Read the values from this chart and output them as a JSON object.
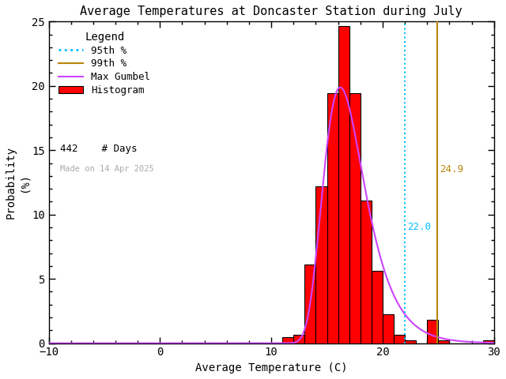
{
  "title": "Average Temperatures at Doncaster Station during July",
  "xlabel": "Average Temperature (C)",
  "ylabel": "Probability\n(%)",
  "xlim": [
    -10,
    30
  ],
  "ylim": [
    0,
    25
  ],
  "xticks": [
    -10,
    0,
    10,
    20,
    30
  ],
  "yticks": [
    0,
    5,
    10,
    15,
    20,
    25
  ],
  "bar_edges": [
    11,
    12,
    13,
    14,
    15,
    16,
    17,
    18,
    19,
    20,
    21,
    22,
    23,
    24,
    25,
    26,
    27,
    28,
    29
  ],
  "bar_heights": [
    0.45,
    0.68,
    6.11,
    12.22,
    19.46,
    24.66,
    19.46,
    11.09,
    5.65,
    2.27,
    0.68,
    0.23,
    0.0,
    1.81,
    0.23,
    0.0,
    0.0,
    0.0,
    0.23
  ],
  "bar_color": "#ff0000",
  "bar_edgecolor": "#000000",
  "pct95_x": 22.0,
  "pct99_x": 24.9,
  "pct95_color": "#00bfff",
  "pct99_color": "#b8860b",
  "gumbel_color": "#cc44ff",
  "n_days": 442,
  "made_on": "Made on 14 Apr 2025",
  "legend_title": "Legend",
  "bg_color": "#ffffff",
  "mu": 16.2,
  "beta": 1.85
}
